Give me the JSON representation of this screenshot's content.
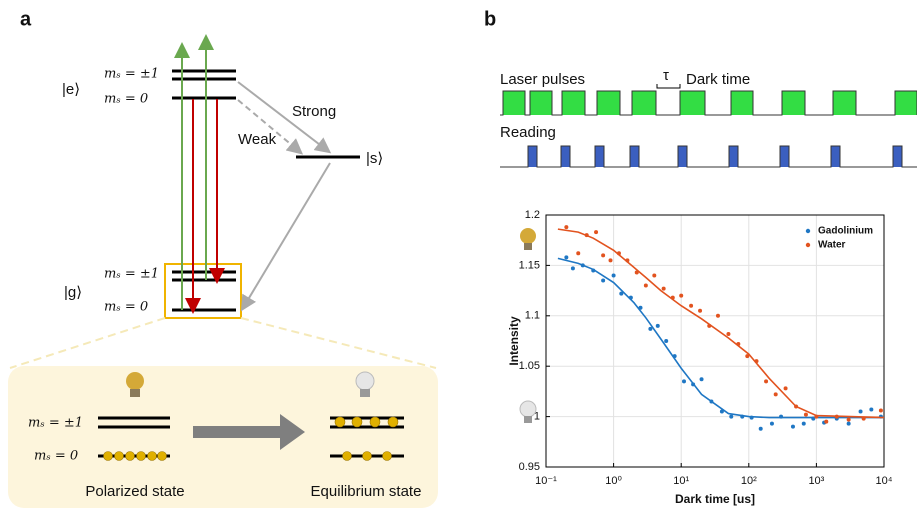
{
  "panel_a": {
    "label": "a",
    "excited": "|e⟩",
    "excited_levels": [
      "mₛ = ±1",
      "mₛ = 0"
    ],
    "strong": "Strong",
    "weak": "Weak",
    "singlet": "|s⟩",
    "ground": "|g⟩",
    "ground_levels": [
      "mₛ = ±1",
      "mₛ = 0"
    ],
    "inset": {
      "levels": [
        "mₛ = ±1",
        "mₛ = 0"
      ],
      "polarized": "Polarized state",
      "equilibrium": "Equilibrium state"
    }
  },
  "panel_b": {
    "label": "b",
    "laser": "Laser pulses",
    "tau": "τ",
    "dark_time": "Dark time",
    "reading": "Reading"
  },
  "chart_data": {
    "type": "scatter",
    "xlabel": "Dark time [us]",
    "ylabel": "Intensity",
    "xscale": "log",
    "grid": true,
    "legend": "upper right",
    "xlim": [
      0.1,
      10000
    ],
    "ylim": [
      0.95,
      1.2
    ],
    "xticks": [
      {
        "value": 0.1,
        "label": "10⁻¹"
      },
      {
        "value": 1,
        "label": "10⁰"
      },
      {
        "value": 10,
        "label": "10¹"
      },
      {
        "value": 100,
        "label": "10²"
      },
      {
        "value": 1000,
        "label": "10³"
      },
      {
        "value": 10000,
        "label": "10⁴"
      }
    ],
    "yticks": [
      0.95,
      1,
      1.05,
      1.1,
      1.15,
      1.2
    ],
    "series": [
      {
        "name": "Gadolinium",
        "color": "#1f77c4",
        "x": [
          0.2,
          0.25,
          0.35,
          0.5,
          0.7,
          1,
          1.3,
          1.8,
          2.5,
          3.5,
          4.5,
          6,
          8,
          11,
          15,
          20,
          28,
          40,
          55,
          80,
          110,
          150,
          220,
          300,
          450,
          650,
          900,
          1300,
          2000,
          3000,
          4500,
          6500,
          9000
        ],
        "values": [
          1.158,
          1.147,
          1.15,
          1.145,
          1.135,
          1.14,
          1.122,
          1.118,
          1.108,
          1.087,
          1.09,
          1.075,
          1.06,
          1.035,
          1.032,
          1.037,
          1.015,
          1.005,
          1.0,
          1.0,
          0.999,
          0.988,
          0.993,
          1.0,
          0.99,
          0.993,
          0.998,
          0.994,
          0.998,
          0.993,
          1.005,
          1.007,
          1.0
        ],
        "fit_x": [
          0.15,
          0.3,
          0.5,
          1,
          2,
          3,
          5,
          10,
          20,
          50,
          100,
          200,
          500,
          1000,
          10000
        ],
        "fit": [
          1.157,
          1.152,
          1.146,
          1.133,
          1.113,
          1.098,
          1.077,
          1.048,
          1.022,
          1.003,
          1.0,
          0.999,
          0.999,
          0.999,
          0.999
        ]
      },
      {
        "name": "Water",
        "color": "#e2531f",
        "x": [
          0.2,
          0.3,
          0.4,
          0.55,
          0.7,
          0.9,
          1.2,
          1.6,
          2.2,
          3,
          4,
          5.5,
          7.5,
          10,
          14,
          19,
          26,
          35,
          50,
          70,
          95,
          130,
          180,
          250,
          350,
          500,
          700,
          1000,
          1400,
          2000,
          3000,
          5000,
          9000
        ],
        "values": [
          1.188,
          1.162,
          1.18,
          1.183,
          1.16,
          1.155,
          1.162,
          1.155,
          1.143,
          1.13,
          1.14,
          1.127,
          1.118,
          1.12,
          1.11,
          1.105,
          1.09,
          1.1,
          1.082,
          1.072,
          1.06,
          1.055,
          1.035,
          1.022,
          1.028,
          1.01,
          1.002,
          1.0,
          0.995,
          1.0,
          0.997,
          0.998,
          1.006
        ],
        "fit_x": [
          0.15,
          0.3,
          0.5,
          1,
          2,
          3,
          5,
          10,
          20,
          50,
          100,
          200,
          500,
          1000,
          10000
        ],
        "fit": [
          1.186,
          1.183,
          1.177,
          1.165,
          1.148,
          1.138,
          1.125,
          1.11,
          1.097,
          1.078,
          1.062,
          1.038,
          1.01,
          1.001,
          0.999
        ]
      }
    ]
  }
}
